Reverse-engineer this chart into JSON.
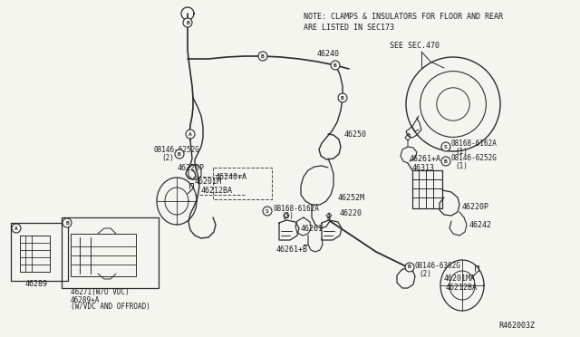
{
  "bg_color": "#f5f5f0",
  "line_color": "#2a2a2a",
  "text_color": "#1a1a1a",
  "note_line1": "NOTE: CLAMPS & INSULATORS FOR FLOOR AND REAR",
  "note_line2": "ARE LISTED IN SEC173",
  "see_text": "SEE SEC.470",
  "ref_text": "R462003Z",
  "fig_width": 6.4,
  "fig_height": 3.72,
  "dpi": 100
}
